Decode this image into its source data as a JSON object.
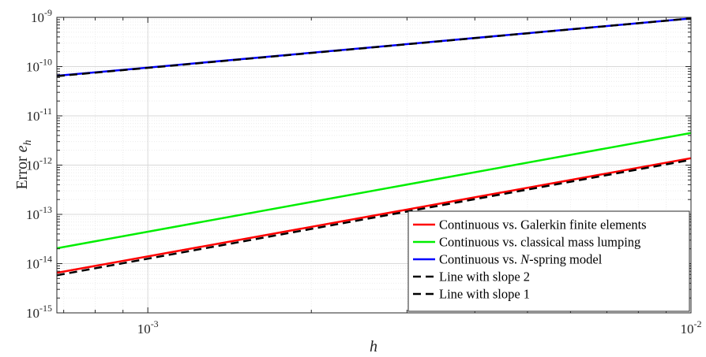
{
  "chart_data": {
    "type": "line",
    "xscale": "log",
    "yscale": "log",
    "xlim": [
      0.00068,
      0.01
    ],
    "ylim": [
      1e-15,
      1e-09
    ],
    "xlabel": "h",
    "ylabel": {
      "prefix": "Error ",
      "symbol": "e",
      "subscript": "h"
    },
    "grid": true,
    "minor_grid": true,
    "legend_position": "bottom-right",
    "x_ticks": [
      {
        "value": 0.001,
        "base": "10",
        "exp": "-3"
      },
      {
        "value": 0.01,
        "base": "10",
        "exp": "-2"
      }
    ],
    "y_ticks": [
      {
        "value": 1e-15,
        "base": "10",
        "exp": "-15"
      },
      {
        "value": 1e-14,
        "base": "10",
        "exp": "-14"
      },
      {
        "value": 1e-13,
        "base": "10",
        "exp": "-13"
      },
      {
        "value": 1e-12,
        "base": "10",
        "exp": "-12"
      },
      {
        "value": 1e-11,
        "base": "10",
        "exp": "-11"
      },
      {
        "value": 1e-10,
        "base": "10",
        "exp": "-10"
      },
      {
        "value": 1e-09,
        "base": "10",
        "exp": "-9"
      }
    ],
    "series": [
      {
        "name": "Continuous vs. Galerkin finite elements",
        "legend": {
          "before": "Continuous vs. Galerkin finite elements",
          "italic": "",
          "after": ""
        },
        "color": "#ff0000",
        "dash": "solid",
        "x": [
          0.00068,
          0.01
        ],
        "y": [
          6.5e-15,
          1.38e-12
        ]
      },
      {
        "name": "Continuous vs. classical mass lumping",
        "legend": {
          "before": "Continuous vs. classical mass lumping",
          "italic": "",
          "after": ""
        },
        "color": "#00ee00",
        "dash": "solid",
        "x": [
          0.00068,
          0.01
        ],
        "y": [
          2.05e-14,
          4.5e-12
        ]
      },
      {
        "name": "Continuous vs. N-spring model",
        "legend": {
          "before": "Continuous vs. ",
          "italic": "N",
          "after": "-spring model"
        },
        "color": "#0000ff",
        "dash": "solid",
        "x": [
          0.00068,
          0.01
        ],
        "y": [
          6.5e-11,
          9.5e-10
        ]
      },
      {
        "name": "Line with slope 2",
        "legend": {
          "before": "Line with slope 2",
          "italic": "",
          "after": ""
        },
        "color": "#000000",
        "dash": "dashed",
        "x": [
          0.00068,
          0.01
        ],
        "y": [
          5.8e-15,
          1.28e-12
        ]
      },
      {
        "name": "Line with slope 1",
        "legend": {
          "before": "Line with slope 1",
          "italic": "",
          "after": ""
        },
        "color": "#000000",
        "dash": "dashed",
        "x": [
          0.00068,
          0.01
        ],
        "y": [
          6.4e-11,
          9.5e-10
        ]
      }
    ]
  }
}
